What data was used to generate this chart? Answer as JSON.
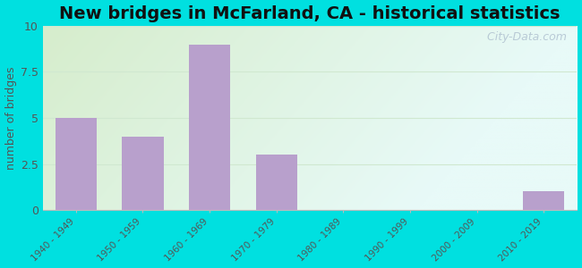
{
  "title": "New bridges in McFarland, CA - historical statistics",
  "categories": [
    "1940 - 1949",
    "1950 - 1959",
    "1960 - 1969",
    "1970 - 1979",
    "1980 - 1989",
    "1990 - 1999",
    "2000 - 2009",
    "2010 - 2019"
  ],
  "values": [
    5,
    4,
    9,
    3,
    0,
    0,
    0,
    1
  ],
  "bar_color": "#b8a0cc",
  "ylabel": "number of bridges",
  "ylim": [
    0,
    10
  ],
  "yticks": [
    0,
    2.5,
    5,
    7.5,
    10
  ],
  "outer_bg": "#00e0e0",
  "plot_bg_topleft": "#d6edcc",
  "plot_bg_right": "#e8faf8",
  "plot_bg_bottom": "#e8faf8",
  "grid_color": "#d0e8d0",
  "title_fontsize": 14,
  "watermark": "  City-Data.com"
}
